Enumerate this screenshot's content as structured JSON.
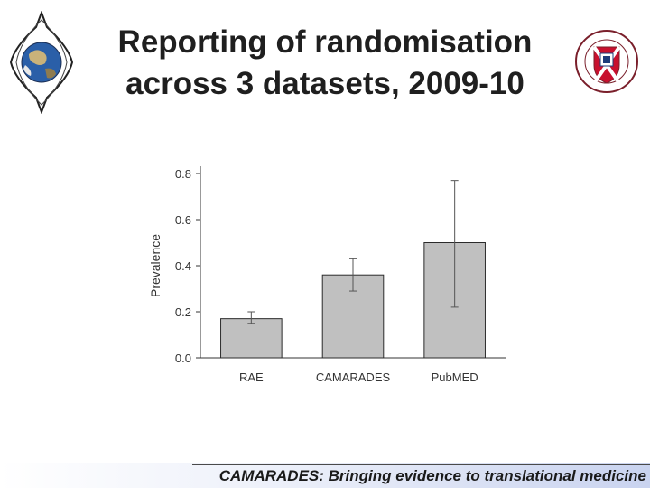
{
  "slide": {
    "title_line1": "Reporting of randomisation",
    "title_line2": "across 3 datasets, 2009-10",
    "footer": "CAMARADES: Bringing evidence to translational medicine",
    "logo_left_icon": "globe-emblem-icon",
    "logo_right_icon": "university-crest-icon"
  },
  "chart_data": {
    "type": "bar",
    "title": "",
    "xlabel": "",
    "ylabel": "Prevalence",
    "categories": [
      "RAE",
      "CAMARADES",
      "PubMED"
    ],
    "values": [
      0.17,
      0.36,
      0.5
    ],
    "error_low": [
      0.15,
      0.29,
      0.22
    ],
    "error_high": [
      0.2,
      0.43,
      0.77
    ],
    "ylim": [
      0.0,
      0.8
    ],
    "yticks": [
      "0.0",
      "0.2",
      "0.4",
      "0.6",
      "0.8"
    ],
    "grid": false,
    "legend": "none",
    "bar_color": "#c0c0c0",
    "bar_edge_color": "#2b2b2b"
  }
}
